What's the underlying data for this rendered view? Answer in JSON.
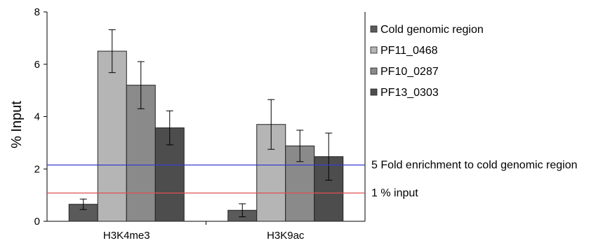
{
  "chart_data": {
    "type": "bar",
    "title": "",
    "xlabel": "",
    "ylabel": "% Input",
    "ylim": [
      0,
      8
    ],
    "yticks": [
      0,
      2,
      4,
      6,
      8
    ],
    "categories": [
      "H3K4me3",
      "H3K9ac"
    ],
    "series": [
      {
        "name": "Cold genomic region",
        "color": "#5a5a5a",
        "values": [
          0.65,
          0.42
        ],
        "errors": [
          0.2,
          0.25
        ]
      },
      {
        "name": "PF11_0468",
        "color": "#b5b5b5",
        "values": [
          6.5,
          3.7
        ],
        "errors": [
          0.82,
          0.95
        ]
      },
      {
        "name": "PF10_0287",
        "color": "#8a8a8a",
        "values": [
          5.2,
          2.88
        ],
        "errors": [
          0.9,
          0.6
        ]
      },
      {
        "name": "PF13_0303",
        "color": "#4d4d4d",
        "values": [
          3.57,
          2.47
        ],
        "errors": [
          0.65,
          0.9
        ]
      }
    ],
    "reference_lines": [
      {
        "label": "5 Fold enrichment to cold genomic region",
        "value": 2.15,
        "color": "#3a3ad0"
      },
      {
        "label": "1 % input",
        "value": 1.08,
        "color": "#e05050"
      }
    ],
    "grid": false,
    "legend": "right"
  }
}
